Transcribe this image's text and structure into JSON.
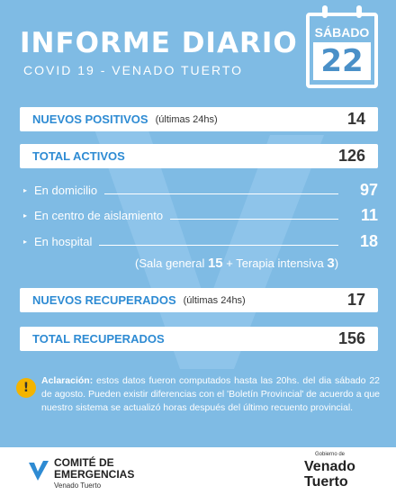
{
  "header": {
    "title": "INFORME DIARIO",
    "subtitle": "COVID 19 - VENADO TUERTO",
    "weekday": "SÁBADO",
    "day": 22
  },
  "rows": [
    {
      "label": "NUEVOS POSITIVOS",
      "hint": "(últimas 24hs)",
      "value": 14
    },
    {
      "label": "TOTAL ACTIVOS",
      "value": 126
    }
  ],
  "breakdown": [
    {
      "label": "En domicilio",
      "value": 97
    },
    {
      "label": "En centro de aislamiento",
      "value": 11
    },
    {
      "label": "En hospital",
      "value": 18
    }
  ],
  "hospital_detail": {
    "open": "(Sala general",
    "general": 15,
    "plus": "+ Terapia intensiva",
    "intensive": 3,
    "close": ")"
  },
  "recovered": [
    {
      "label": "NUEVOS RECUPERADOS",
      "hint": "(últimas 24hs)",
      "value": 17
    },
    {
      "label": "TOTAL RECUPERADOS",
      "value": 156
    }
  ],
  "note": {
    "icon": "!",
    "lead": "Aclaración:",
    "text": "estos datos fueron computados hasta las 20hs. del dia sábado 22 de agosto. Pueden existir diferencias con el 'Boletín Provincial' de acuerdo a que nuestro sistema se actualizó horas después del último recuento provincial."
  },
  "footer": {
    "org_line1": "COMITÉ DE",
    "org_line2": "EMERGENCIAS",
    "org_city": "Venado Tuerto",
    "gov_small": "Gobierno de",
    "gov_line1": "Venado",
    "gov_line2": "Tuerto"
  }
}
